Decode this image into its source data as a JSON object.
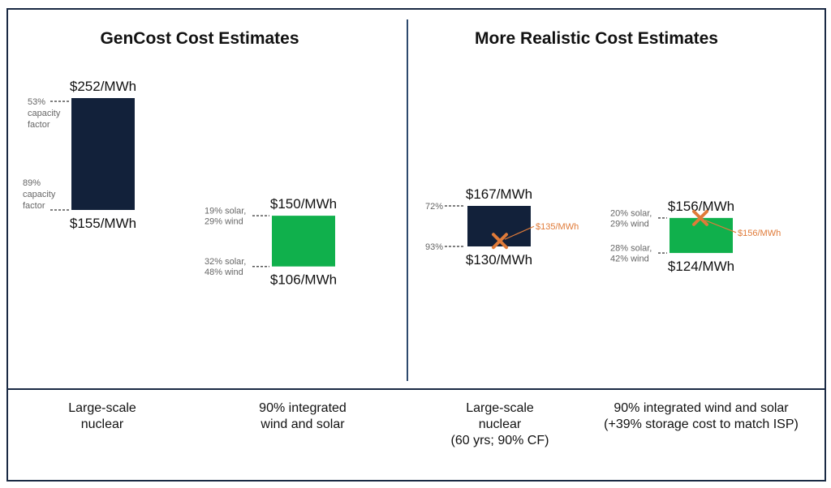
{
  "panels": [
    {
      "title": "GenCost Cost Estimates"
    },
    {
      "title": "More Realistic Cost Estimates"
    }
  ],
  "colors": {
    "nuclear": "#12213a",
    "renewables": "#10b04c",
    "marker": "#e07b39",
    "tick": "#555555",
    "note": "#666666"
  },
  "chart_data": {
    "type": "bar",
    "subtype": "floating-range",
    "unit": "$/MWh",
    "ylim": [
      100,
      260
    ],
    "categories": [
      "Large-scale nuclear",
      "90% integrated wind and solar",
      "Large-scale nuclear (60 yrs; 90% CF)",
      "90% integrated wind and solar (+39% storage cost to match ISP)"
    ],
    "bars": [
      {
        "panel": 0,
        "category_lines": [
          "Large-scale",
          "nuclear"
        ],
        "low": 155,
        "high": 252,
        "low_label": "$155/MWh",
        "high_label": "$252/MWh",
        "high_note": [
          "53%",
          "capacity",
          "factor"
        ],
        "low_note": [
          "89%",
          "capacity",
          "factor"
        ],
        "color": "nuclear"
      },
      {
        "panel": 0,
        "category_lines": [
          "90% integrated",
          "wind and solar"
        ],
        "low": 106,
        "high": 150,
        "low_label": "$106/MWh",
        "high_label": "$150/MWh",
        "high_note": [
          "19% solar,",
          "29% wind"
        ],
        "low_note": [
          "32% solar,",
          "48% wind"
        ],
        "color": "renewables"
      },
      {
        "panel": 1,
        "category_lines": [
          "Large-scale",
          "nuclear",
          "(60 yrs; 90% CF)"
        ],
        "low": 130,
        "high": 167,
        "low_label": "$130/MWh",
        "high_label": "$167/MWh",
        "high_note": [
          "72%"
        ],
        "low_note": [
          "93%"
        ],
        "marker": {
          "value": 135,
          "label": "$135/MWh"
        },
        "color": "nuclear"
      },
      {
        "panel": 1,
        "category_lines": [
          "90% integrated wind and solar",
          "(+39% storage cost to match ISP)"
        ],
        "low": 124,
        "high": 156,
        "low_label": "$124/MWh",
        "high_label": "$156/MWh",
        "high_note": [
          "20% solar,",
          "29% wind"
        ],
        "low_note": [
          "28% solar,",
          "42% wind"
        ],
        "marker": {
          "value": 156,
          "label": "$156/MWh"
        },
        "color": "renewables"
      }
    ]
  }
}
